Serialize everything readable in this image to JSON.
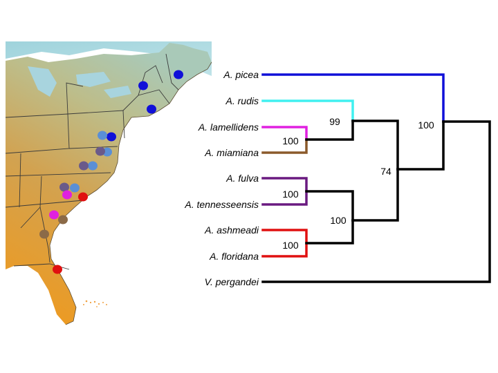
{
  "tree": {
    "taxa": [
      {
        "key": "picea",
        "label": "A. picea",
        "color": "#1010d8"
      },
      {
        "key": "rudis",
        "label": "A. rudis",
        "color": "#40f0f0"
      },
      {
        "key": "lamel",
        "label": "A. lamellidens",
        "color": "#e020e0"
      },
      {
        "key": "miami",
        "label": "A. miamiana",
        "color": "#8b5a2b"
      },
      {
        "key": "fulva",
        "label": "A. fulva",
        "color": "#6a1a80"
      },
      {
        "key": "tenn",
        "label": "A. tennesseensis",
        "color": "#6a1a80"
      },
      {
        "key": "ash",
        "label": "A. ashmeadi",
        "color": "#e01010"
      },
      {
        "key": "flor",
        "label": "A. floridana",
        "color": "#e01010"
      },
      {
        "key": "perg",
        "label": "V. pergandei",
        "color": "#000000"
      }
    ],
    "support_values": {
      "lamel_miami": "100",
      "rudis_clade": "99",
      "picea_clade": "100",
      "fulva_tenn": "100",
      "ash_flor": "100",
      "southern_clade": "100",
      "ingroup_core": "74"
    }
  },
  "map": {
    "points": [
      {
        "color": "#1010d8"
      },
      {
        "color": "#1010d8"
      },
      {
        "color": "#1010d8"
      },
      {
        "color": "#1010d8"
      },
      {
        "color": "#5a8fd6"
      },
      {
        "color": "#5a8fd6"
      },
      {
        "color": "#5a8fd6"
      },
      {
        "color": "#5a8fd6"
      },
      {
        "color": "#6a5a8a"
      },
      {
        "color": "#6a5a8a"
      },
      {
        "color": "#6a5a8a"
      },
      {
        "color": "#e020e0"
      },
      {
        "color": "#e020e0"
      },
      {
        "color": "#e01010"
      },
      {
        "color": "#e01010"
      },
      {
        "color": "#8b6a48"
      },
      {
        "color": "#8b6a48"
      }
    ]
  }
}
